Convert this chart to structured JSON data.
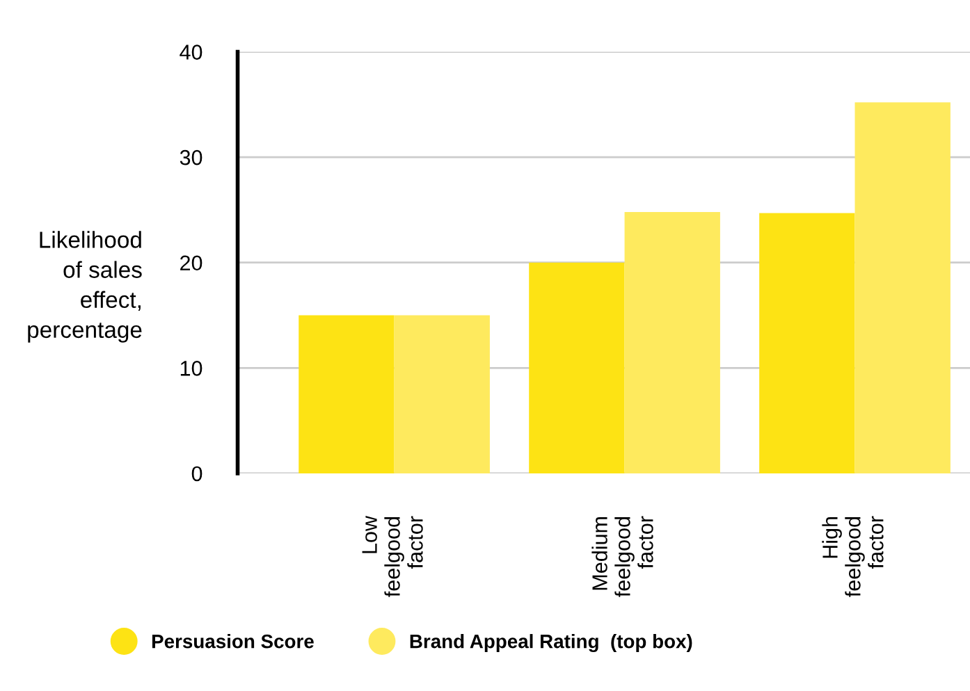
{
  "chart_data": {
    "type": "bar",
    "ylabel": "Likelihood\nof sales\neffect,\npercentage",
    "categories": [
      "Low\nfeelgood\nfactor",
      "Medium\nfeelgood\nfactor",
      "High\nfeelgood\nfactor"
    ],
    "series": [
      {
        "name": "Persuasion Score",
        "color": "#fde314",
        "values": [
          15,
          20,
          24.7
        ]
      },
      {
        "name": "Brand Appeal Rating  (top box)",
        "color": "#feea5e",
        "values": [
          15,
          24.8,
          35.2
        ]
      }
    ],
    "ylim": [
      0,
      40
    ],
    "yticks": [
      0,
      10,
      20,
      30,
      40
    ],
    "grid": "y",
    "legend": "bottom"
  }
}
